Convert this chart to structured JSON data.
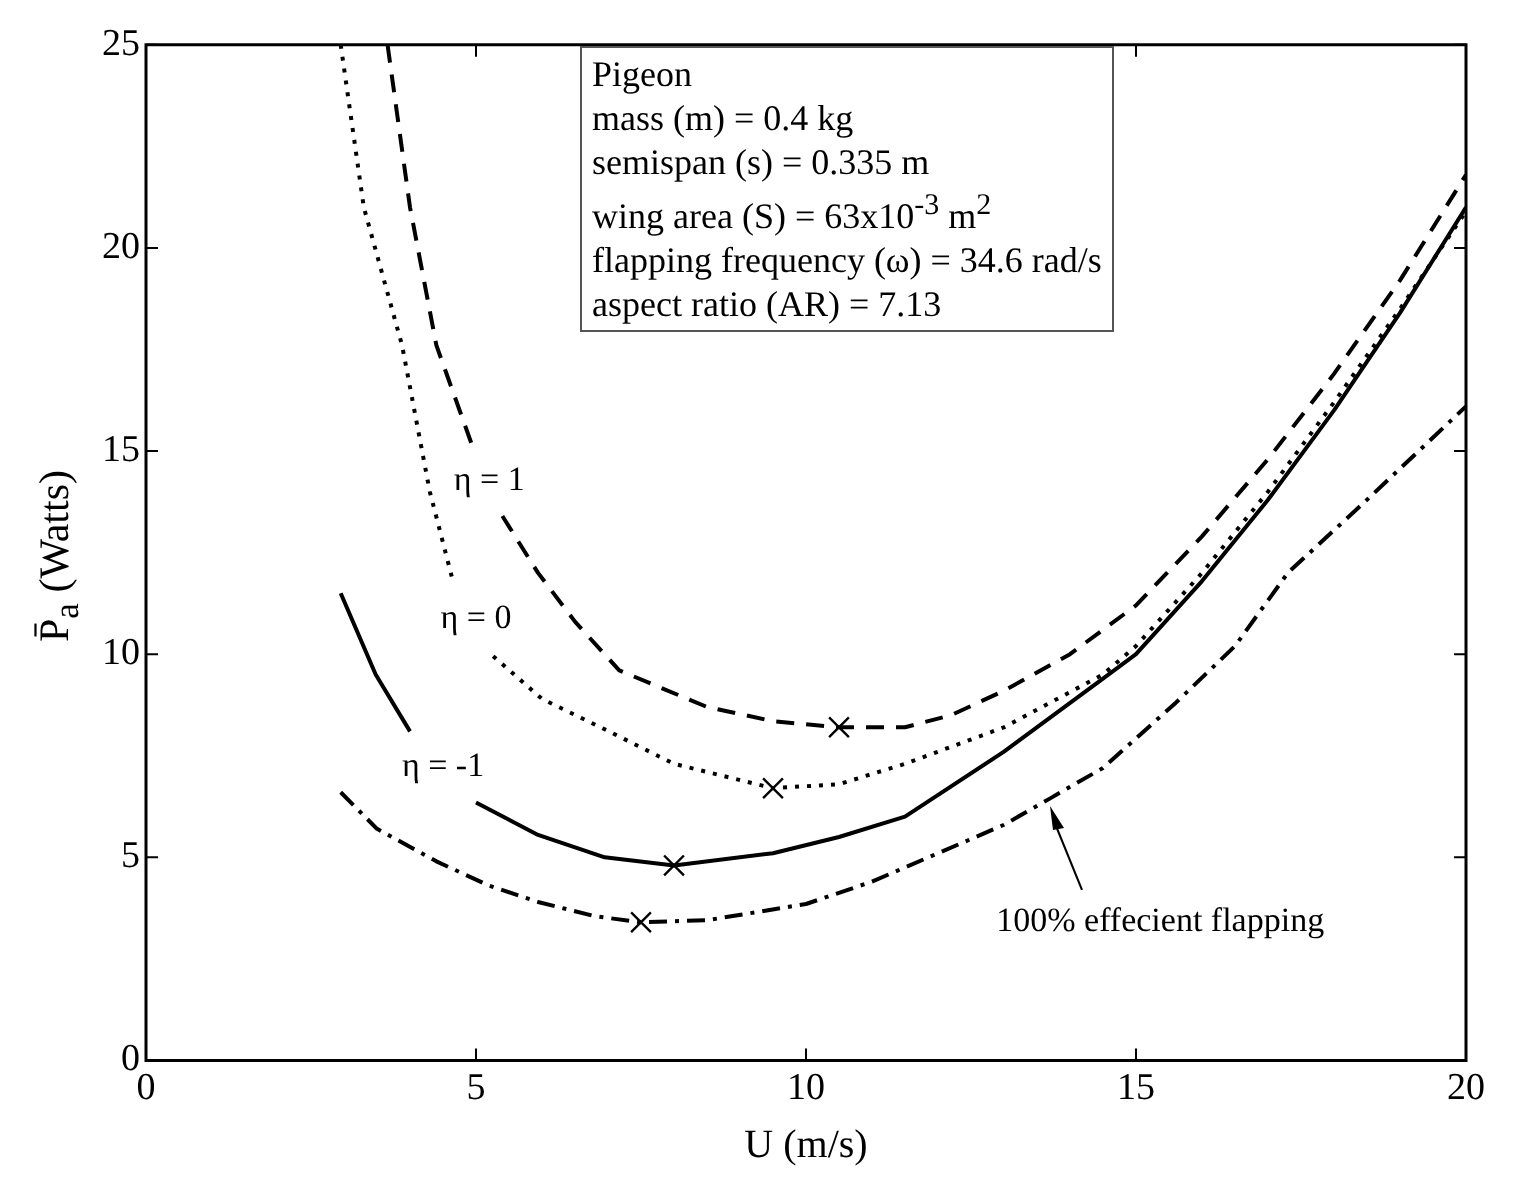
{
  "chart_data": {
    "type": "line",
    "xlabel": "U (m/s)",
    "ylabel": "P̄$_{a}$ (Watts)",
    "xlim": [
      0,
      20
    ],
    "xticks": [
      0,
      5,
      10,
      15,
      20
    ],
    "ylim": [
      0,
      25
    ],
    "yticks": [
      0,
      5,
      10,
      15,
      20,
      25
    ],
    "grid": false,
    "legend": false,
    "series": [
      {
        "name": "η = 1",
        "color": "#000000",
        "line_style": "dashed",
        "marker": "none",
        "x": [
          3.66,
          4.0,
          4.4,
          4.95,
          5.2,
          5.4,
          5.94,
          6.5,
          7.17,
          8.5,
          9.5,
          10.5,
          11.5,
          12.2,
          13.0,
          14.0,
          15.0,
          16.0,
          17.0,
          18.0,
          19.0,
          20.0
        ],
        "values": [
          25,
          21.0,
          17.6,
          15.1,
          null,
          13.4,
          12.0,
          10.8,
          9.6,
          8.7,
          8.35,
          8.2,
          8.2,
          8.5,
          9.1,
          10.0,
          11.2,
          12.9,
          14.8,
          16.9,
          19.2,
          21.8
        ]
      },
      {
        "name": "η = 0",
        "color": "#000000",
        "line_style": "dotted",
        "marker": "none",
        "x": [
          2.95,
          3.3,
          3.88,
          4.3,
          4.65,
          5.0,
          5.26,
          6.0,
          6.95,
          8.0,
          9.5,
          10.5,
          11.5,
          13.0,
          14.5,
          15.0,
          16.0,
          17.0,
          18.0,
          19.0,
          20.0
        ],
        "values": [
          25,
          21.0,
          17.6,
          14.0,
          11.8,
          null,
          9.95,
          8.9,
          8.15,
          7.3,
          6.7,
          6.8,
          7.3,
          8.2,
          9.5,
          10.2,
          12.0,
          14.0,
          16.2,
          18.5,
          20.9
        ]
      },
      {
        "name": "η = -1",
        "color": "#000000",
        "line_style": "solid",
        "marker": "none",
        "x": [
          2.95,
          3.48,
          4.0,
          4.5,
          5.0,
          5.94,
          6.95,
          8.0,
          9.5,
          10.5,
          11.5,
          13.0,
          14.5,
          15.0,
          16.0,
          17.0,
          18.0,
          19.0,
          20.0
        ],
        "values": [
          11.5,
          9.5,
          8.1,
          null,
          6.35,
          5.55,
          5.0,
          4.8,
          5.1,
          5.5,
          6.0,
          7.6,
          9.4,
          10.0,
          11.8,
          13.8,
          16.0,
          18.4,
          21.0
        ]
      },
      {
        "color": "#000000",
        "line_style": "dashdot",
        "marker": "none",
        "x": [
          2.95,
          3.5,
          4.4,
          5.2,
          5.94,
          6.8,
          7.5,
          8.5,
          10.0,
          11.0,
          12.0,
          13.0,
          13.7,
          14.5,
          15.6,
          16.5,
          17.3,
          18.5,
          20.0
        ],
        "values": [
          6.6,
          5.7,
          4.9,
          4.3,
          3.9,
          3.55,
          3.4,
          3.45,
          3.85,
          4.4,
          5.1,
          5.8,
          6.45,
          7.2,
          8.8,
          10.2,
          12.0,
          13.8,
          16.1
        ]
      },
      {
        "type": "scatter",
        "color": "#000000",
        "marker": "cross",
        "x": [
          10.5,
          9.5,
          8.0,
          7.5
        ],
        "values": [
          8.2,
          6.7,
          4.8,
          3.4
        ]
      }
    ],
    "annotations": [
      "100% effecient flapping",
      "Pigeon",
      "mass (m) = 0.4 kg",
      "semispan (s) = 0.335 m",
      "wing area (S) = 63x10$^{-3}$ m$^{2}$",
      "flapping frequency (ω) = 34.6 rad/s",
      "aspect ratio (AR) = 7.13"
    ]
  }
}
